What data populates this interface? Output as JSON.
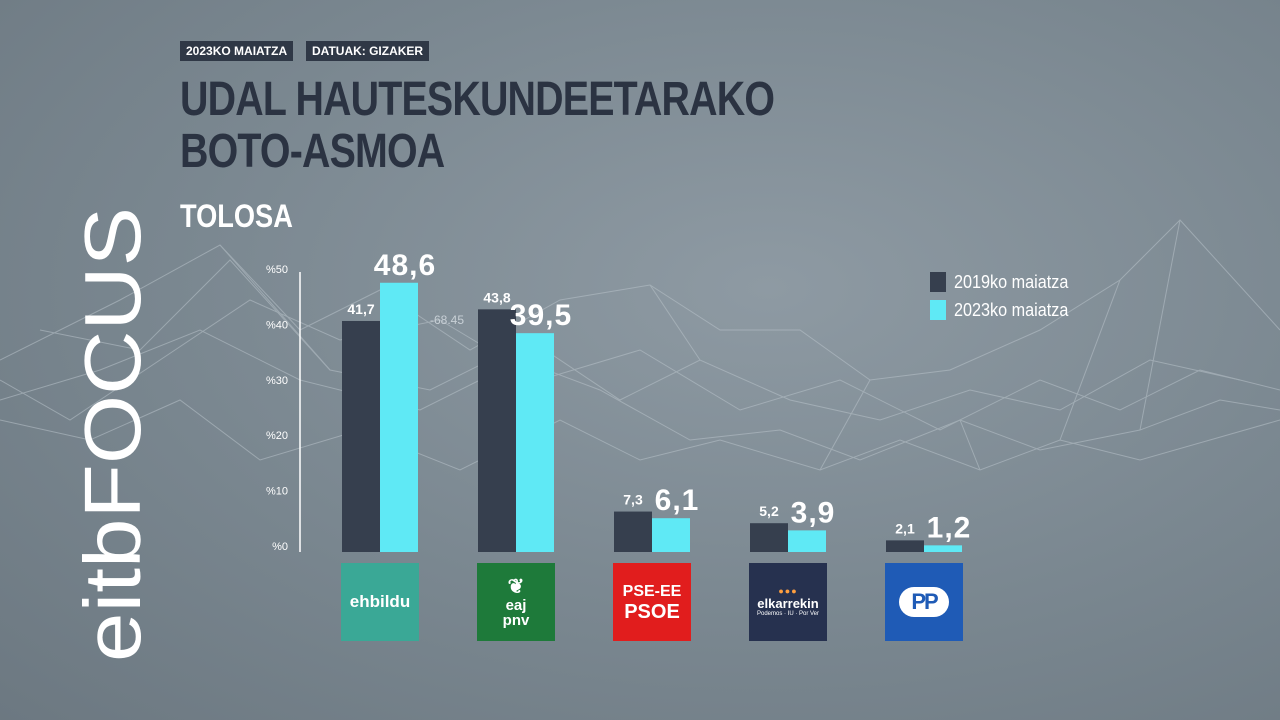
{
  "tags": {
    "date": "2023KO MAIATZA",
    "source": "DATUAK: GIZAKER"
  },
  "title": {
    "line1": "UDAL HAUTESKUNDEETARAKO",
    "line2": "BOTO-ASMOA"
  },
  "location": "TOLOSA",
  "brand": {
    "name": "eitbFOCUS"
  },
  "background_annotation": "-68.45",
  "colors": {
    "series_2019": "#363f4e",
    "series_2023": "#5fe9f5",
    "background": "#7a8790",
    "title": "#2b3342"
  },
  "logos": {
    "ehbildu": "ehbildu",
    "eaj_line1": "eaj",
    "eaj_line2": "pnv",
    "pse_line1": "PSE-EE",
    "pse_line2": "PSOE",
    "elkarrekin": "elkarrekin",
    "elkarrekin_sub": "Podemos · IU · Por Ver",
    "pp": "PP"
  },
  "chart_data": {
    "type": "bar",
    "categories": [
      "EH Bildu",
      "EAJ-PNV",
      "PSE-EE PSOE",
      "Elkarrekin",
      "PP"
    ],
    "series": [
      {
        "name": "2019ko maiatza",
        "values": [
          41.7,
          43.8,
          7.3,
          5.2,
          2.1
        ],
        "labels": [
          "41,7",
          "43,8",
          "7,3",
          "5,2",
          "2,1"
        ]
      },
      {
        "name": "2023ko maiatza",
        "values": [
          48.6,
          39.5,
          6.1,
          3.9,
          1.2
        ],
        "labels": [
          "48,6",
          "39,5",
          "6,1",
          "3,9",
          "1,2"
        ]
      }
    ],
    "yticks": [
      "%0",
      "%10",
      "%20",
      "%30",
      "%40",
      "%50"
    ],
    "ylim": [
      0,
      50
    ],
    "legend": "right"
  }
}
